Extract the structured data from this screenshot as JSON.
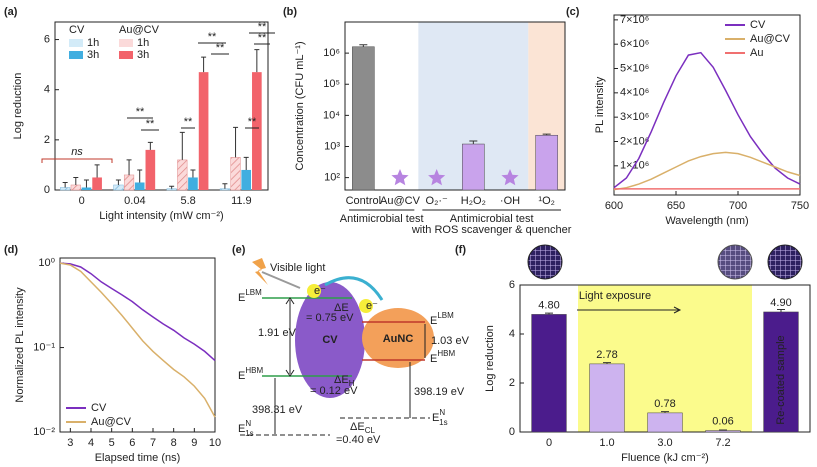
{
  "chart_data": [
    {
      "type": "bar",
      "label": "(a)",
      "ylabel": "Log reduction",
      "xlabel": "Light intensity (mW cm⁻²)",
      "categories": [
        "0",
        "0.04",
        "5.8",
        "11.9"
      ],
      "legend_groups": [
        "CV",
        "Au@CV"
      ],
      "series": [
        {
          "name": "1h",
          "group": 0,
          "color": "#d3ebf8",
          "hatch": true,
          "hatch_color": "#7fb8dc",
          "values": [
            0.1,
            0.2,
            0.05,
            0.05
          ],
          "errors": [
            0.2,
            0.2,
            0.1,
            0.2
          ]
        },
        {
          "name": "1h",
          "group": 1,
          "color": "#fbdada",
          "hatch": true,
          "hatch_color": "#e08a8a",
          "values": [
            0.2,
            0.6,
            1.2,
            1.3
          ],
          "errors": [
            0.3,
            0.6,
            1.1,
            1.2
          ]
        },
        {
          "name": "3h",
          "group": 0,
          "color": "#41aee0",
          "values": [
            0.1,
            0.3,
            0.5,
            0.8
          ],
          "errors": [
            0.3,
            0.5,
            0.3,
            0.5
          ]
        },
        {
          "name": "3h",
          "group": 1,
          "color": "#f2636b",
          "values": [
            0.5,
            1.6,
            4.7,
            4.7
          ],
          "errors": [
            0.5,
            0.3,
            0.6,
            0.9
          ]
        }
      ],
      "ylim": [
        0,
        6.7
      ],
      "yticks": [
        0,
        2,
        4,
        6
      ],
      "annotations": [
        {
          "text": "ns",
          "color": "#c0392b"
        },
        {
          "text": "**"
        },
        {
          "text": "**"
        },
        {
          "text": "**"
        },
        {
          "text": "**"
        },
        {
          "text": "**"
        },
        {
          "text": "**"
        },
        {
          "text": "**"
        },
        {
          "text": "**"
        }
      ]
    },
    {
      "type": "bar",
      "label": "(b)",
      "ylabel": "Concentration (CFU mL⁻¹)",
      "log_y": true,
      "categories": [
        "Control",
        "Au@CV",
        "O₂·⁻",
        "H₂O₂",
        "·OH",
        "¹O₂"
      ],
      "values": [
        1600000,
        null,
        null,
        1200,
        null,
        2300
      ],
      "errors": [
        250000,
        null,
        null,
        300,
        null,
        200
      ],
      "colors": [
        "#8c8c8c",
        "#c9a3ec",
        "#c9a3ec",
        "#c9a3ec",
        "#c9a3ec",
        "#c9a3ec"
      ],
      "null_marker_color": "#b784e0",
      "ylim": [
        40,
        10000000
      ],
      "yticks": [
        {
          "value": 100,
          "label": "10²"
        },
        {
          "value": 1000,
          "label": "10³"
        },
        {
          "value": 10000,
          "label": "10⁴"
        },
        {
          "value": 100000,
          "label": "10⁵"
        },
        {
          "value": 1000000,
          "label": "10⁶"
        }
      ],
      "shading": [
        {
          "start": 2,
          "end": 4,
          "color": "#dfe8f4"
        },
        {
          "start": 5,
          "end": 5,
          "color": "#fbe4d5"
        }
      ],
      "groups": [
        {
          "size": 2,
          "lines": [
            "Antimicrobial test"
          ]
        },
        {
          "size": 4,
          "lines": [
            "Antimicrobial test",
            "with ROS scavenger & quencher"
          ]
        }
      ]
    },
    {
      "type": "line",
      "label": "(c)",
      "ylabel": "PL intensity",
      "xlabel": "Wavelength (nm)",
      "legend": "upper right",
      "x": [
        600,
        610,
        620,
        630,
        640,
        650,
        660,
        670,
        680,
        690,
        700,
        710,
        720,
        730,
        740,
        750
      ],
      "series": [
        {
          "name": "CV",
          "color": "#7b2fbf",
          "values": [
            100000,
            500000,
            1300000,
            2400000,
            3600000,
            4700000,
            5550000,
            5650000,
            5050000,
            4100000,
            3100000,
            2200000,
            1500000,
            900000,
            500000,
            250000
          ]
        },
        {
          "name": "Au@CV",
          "color": "#d9b06a",
          "values": [
            20000,
            100000,
            250000,
            450000,
            700000,
            950000,
            1200000,
            1380000,
            1500000,
            1550000,
            1500000,
            1350000,
            1150000,
            950000,
            750000,
            600000
          ]
        },
        {
          "name": "Au",
          "color": "#f07070",
          "values": [
            50000,
            50000,
            50000,
            50000,
            50000,
            50000,
            50000,
            50000,
            50000,
            50000,
            50000,
            50000,
            50000,
            50000,
            50000,
            50000
          ]
        }
      ],
      "xlim": [
        600,
        750
      ],
      "xticks": [
        600,
        650,
        700,
        750
      ],
      "ylim": [
        -200000,
        7200000
      ],
      "yticks": [
        {
          "value": 1000000,
          "label": "1×10⁶"
        },
        {
          "value": 2000000,
          "label": "2×10⁶"
        },
        {
          "value": 3000000,
          "label": "3×10⁶"
        },
        {
          "value": 4000000,
          "label": "4×10⁶"
        },
        {
          "value": 5000000,
          "label": "5×10⁶"
        },
        {
          "value": 6000000,
          "label": "6×10⁶"
        },
        {
          "value": 7000000,
          "label": "7×10⁶"
        }
      ]
    },
    {
      "type": "line",
      "label": "(d)",
      "ylabel": "Normalized PL intensity",
      "xlabel": "Elapsed time (ns)",
      "legend": "lower left",
      "log_y": true,
      "x": [
        2.5,
        3,
        3.5,
        4,
        4.5,
        5,
        5.5,
        6,
        6.5,
        7,
        7.5,
        8,
        8.5,
        9,
        9.5,
        10
      ],
      "series": [
        {
          "name": "CV",
          "color": "#7b2fbf",
          "values": [
            1,
            0.98,
            0.9,
            0.75,
            0.6,
            0.5,
            0.42,
            0.35,
            0.28,
            0.23,
            0.19,
            0.16,
            0.13,
            0.11,
            0.09,
            0.07
          ]
        },
        {
          "name": "Au@CV",
          "color": "#d9b06a",
          "values": [
            1,
            0.95,
            0.8,
            0.6,
            0.45,
            0.33,
            0.24,
            0.17,
            0.12,
            0.09,
            0.07,
            0.055,
            0.045,
            0.035,
            0.025,
            0.015
          ]
        }
      ],
      "xlim": [
        2.5,
        10
      ],
      "xticks": [
        3,
        4,
        5,
        6,
        7,
        8,
        9,
        10
      ],
      "ylim": [
        0.01,
        1.15
      ],
      "yticks": [
        {
          "value": 0.01,
          "label": "10⁻²"
        },
        {
          "value": 0.1,
          "label": "10⁻¹"
        },
        {
          "value": 1,
          "label": "10⁰"
        }
      ]
    },
    {
      "type": "bar",
      "label": "(f)",
      "ylabel": "Log reduction",
      "xlabel": "Fluence (kJ cm⁻²)",
      "categories": [
        "0",
        "1.0",
        "3.0",
        "7.2",
        null
      ],
      "values": [
        4.8,
        2.78,
        0.78,
        0.06,
        4.9
      ],
      "errors": [
        0.05,
        0.05,
        0.05,
        0.02,
        0.1
      ],
      "value_labels": [
        "4.80",
        "2.78",
        "0.78",
        "0.06",
        "4.90"
      ],
      "colors": [
        "#4b1c8c",
        "#cdb3ef",
        "#cdb3ef",
        "#cdb3ef",
        "#4b1c8c"
      ],
      "ylim": [
        0,
        6
      ],
      "yticks": [
        0,
        2,
        4,
        6
      ],
      "shading": [
        {
          "start": 1,
          "end": 3,
          "color": "#fbfb8c"
        }
      ],
      "annotations": [
        {
          "text": "Light exposure"
        },
        {
          "text": "Re-coated sample"
        }
      ]
    }
  ],
  "diagram": {
    "label": "(e)",
    "items": [
      {
        "text": "Visible light"
      },
      {
        "text": "e⁻"
      },
      {
        "text": "e⁻"
      },
      {
        "text": "E",
        "sup": "LBM",
        "color": "#2e9e4a"
      },
      {
        "text": "E",
        "sup": "HBM",
        "color": "#2e9e4a"
      },
      {
        "text": "ΔE"
      },
      {
        "text": "= 0.75 eV"
      },
      {
        "text": "1.91 eV"
      },
      {
        "text": "CV",
        "color": "#ffffff"
      },
      {
        "text": "AuNC",
        "color": "#ffffff"
      },
      {
        "text": "E",
        "sup": "LBM",
        "color": "#c0392b"
      },
      {
        "text": "E",
        "sup": "HBM",
        "color": "#c0392b"
      },
      {
        "text": "1.03 eV"
      },
      {
        "text": "ΔE",
        "sub": "H"
      },
      {
        "text": "= 0.12 eV"
      },
      {
        "text": "398.19 eV"
      },
      {
        "text": "398.31 eV"
      },
      {
        "text": "E",
        "sup": "N",
        "sub": "1s"
      },
      {
        "text": "E",
        "sup": "N",
        "sub": "1s"
      },
      {
        "text": "ΔE",
        "sub": "CL"
      },
      {
        "text": "=0.40 eV"
      }
    ]
  }
}
